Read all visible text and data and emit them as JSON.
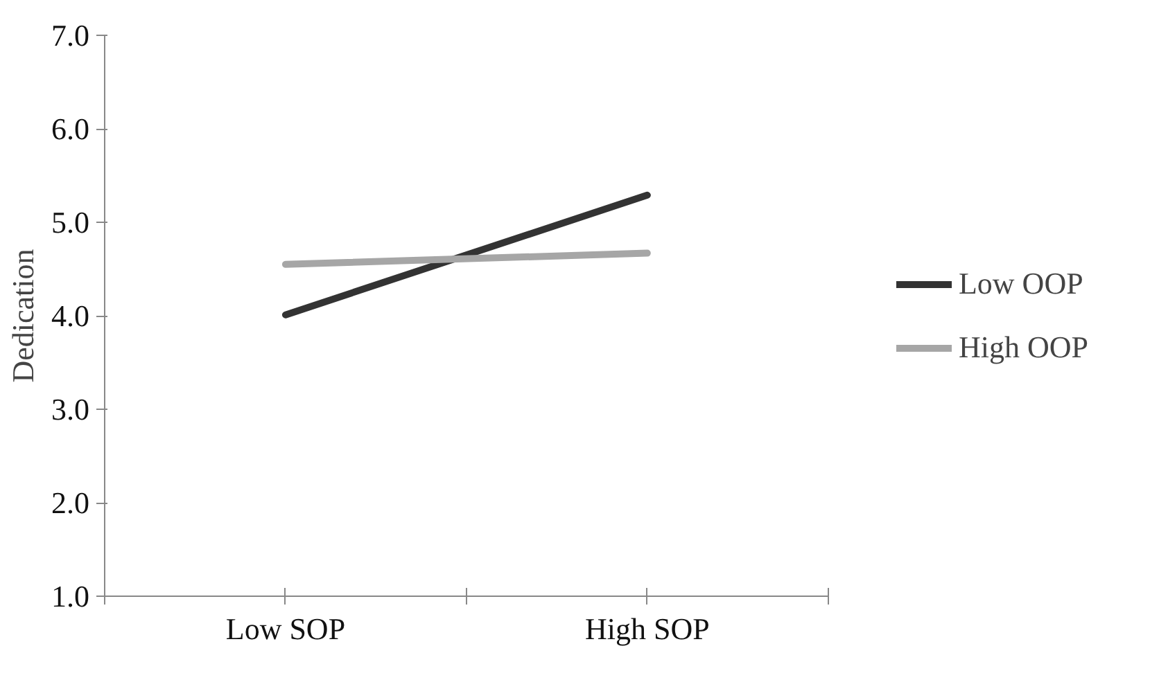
{
  "chart_data": {
    "type": "line",
    "ylabel": "Dedication",
    "categories": [
      "Low SOP",
      "High SOP"
    ],
    "series": [
      {
        "name": "Low OOP",
        "color": "#333333",
        "values": [
          4.01,
          5.29
        ]
      },
      {
        "name": "High OOP",
        "color": "#a6a6a6",
        "values": [
          4.55,
          4.67
        ]
      }
    ],
    "ylim": [
      1.0,
      7.0
    ],
    "yticks": [
      {
        "value": 1,
        "label": "1.0"
      },
      {
        "value": 2,
        "label": "2.0"
      },
      {
        "value": 3,
        "label": "3.0"
      },
      {
        "value": 4,
        "label": "4.0"
      },
      {
        "value": 5,
        "label": "5.0"
      },
      {
        "value": 6,
        "label": "6.0"
      },
      {
        "value": 7,
        "label": "7.0"
      }
    ],
    "grid": false,
    "legend": "right",
    "marker": "none",
    "line_style": "solid"
  }
}
